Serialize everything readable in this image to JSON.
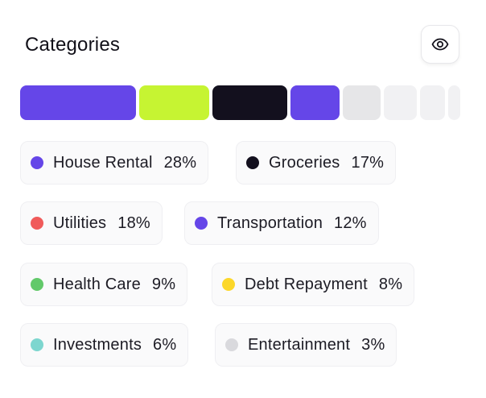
{
  "header": {
    "title": "Categories",
    "toggle_icon": "eye-icon"
  },
  "colors": {
    "purple": "#6546e8",
    "lime": "#c6f432",
    "black": "#13101e",
    "red": "#f05a5a",
    "green": "#62c96a",
    "yellow": "#fcd72a",
    "teal": "#7dd6cf",
    "gray": "#d9d9dd",
    "segment_gray_1": "#e6e6e8",
    "segment_gray_2": "#f1f1f3"
  },
  "chart_data": {
    "type": "bar",
    "stacked": true,
    "orientation": "horizontal",
    "categories": [
      "House Rental",
      "Groceries",
      "Utilities",
      "Transportation",
      "Health Care",
      "Debt Repayment",
      "Investments",
      "Entertainment"
    ],
    "segment_order": [
      "House Rental",
      "Groceries",
      "Utilities",
      "Transportation",
      "Health Care",
      "Debt Repayment",
      "Investments",
      "Entertainment"
    ],
    "values": [
      28,
      17,
      18,
      12,
      9,
      8,
      6,
      3
    ]
  },
  "legend": [
    {
      "label": "House Rental",
      "percent": "28%",
      "color": "#6546e8"
    },
    {
      "label": "Groceries",
      "percent": "17%",
      "color": "#13101e"
    },
    {
      "label": "Utilities",
      "percent": "18%",
      "color": "#f05a5a"
    },
    {
      "label": "Transportation",
      "percent": "12%",
      "color": "#6546e8"
    },
    {
      "label": "Health Care",
      "percent": "9%",
      "color": "#62c96a"
    },
    {
      "label": "Debt Repayment",
      "percent": "8%",
      "color": "#fcd72a"
    },
    {
      "label": "Investments",
      "percent": "6%",
      "color": "#7dd6cf"
    },
    {
      "label": "Entertainment",
      "percent": "3%",
      "color": "#d9d9dd"
    }
  ]
}
